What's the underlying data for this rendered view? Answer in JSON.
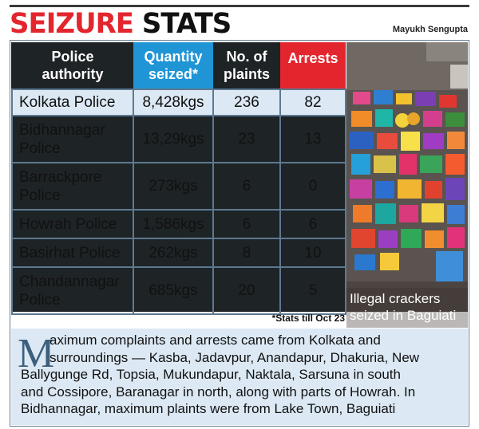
{
  "header": {
    "title_red": "SEIZURE",
    "title_black": "STATS",
    "credit": "Mayukh Sengupta"
  },
  "table": {
    "headers": {
      "authority": [
        "Police",
        "authority"
      ],
      "quantity": [
        "Quantity",
        "seized*"
      ],
      "plaints": [
        "No. of",
        "plaints"
      ],
      "arrests": "Arrests"
    },
    "rows": [
      {
        "authority": [
          "Kolkata Police"
        ],
        "quantity": "8,428kgs",
        "plaints": "236",
        "arrests": "82"
      },
      {
        "authority": [
          "Bidhannagar",
          "Police"
        ],
        "quantity": "13,29kgs",
        "plaints": "23",
        "arrests": "13"
      },
      {
        "authority": [
          "Barrackpore",
          "Police"
        ],
        "quantity": "273kgs",
        "plaints": "6",
        "arrests": "0"
      },
      {
        "authority": [
          "Howrah Police"
        ],
        "quantity": "1,586kgs",
        "plaints": "6",
        "arrests": "6"
      },
      {
        "authority": [
          "Basirhat Police"
        ],
        "quantity": "262kgs",
        "plaints": "8",
        "arrests": "10"
      },
      {
        "authority": [
          "Chandannagar",
          "Police"
        ],
        "quantity": "685kgs",
        "plaints": "20",
        "arrests": "5"
      }
    ],
    "footnote": "*Stats till Oct 23"
  },
  "photo": {
    "caption": [
      "Illegal crackers",
      "seized in Baguiati"
    ]
  },
  "summary": {
    "dropcap": "M",
    "lines": [
      "aximum complaints and arrests came from Kolkata and",
      "surroundings — Kasba, Jadavpur, Anandapur, Dhakuria, New",
      "Ballygunge Rd, Topsia, Mukundapur, Naktala, Sarsuna in south",
      "and Cossipore, Baranagar in north, along with parts of Howrah. In",
      "Bidhannagar, maximum plaints were from Lake Town, Baguiati"
    ]
  },
  "colors": {
    "accent_red": "#e3262e",
    "accent_blue": "#1f95d6",
    "header_dark": "#1e2326",
    "row_highlight": "#dce9f4",
    "grid": "#5d7991"
  }
}
